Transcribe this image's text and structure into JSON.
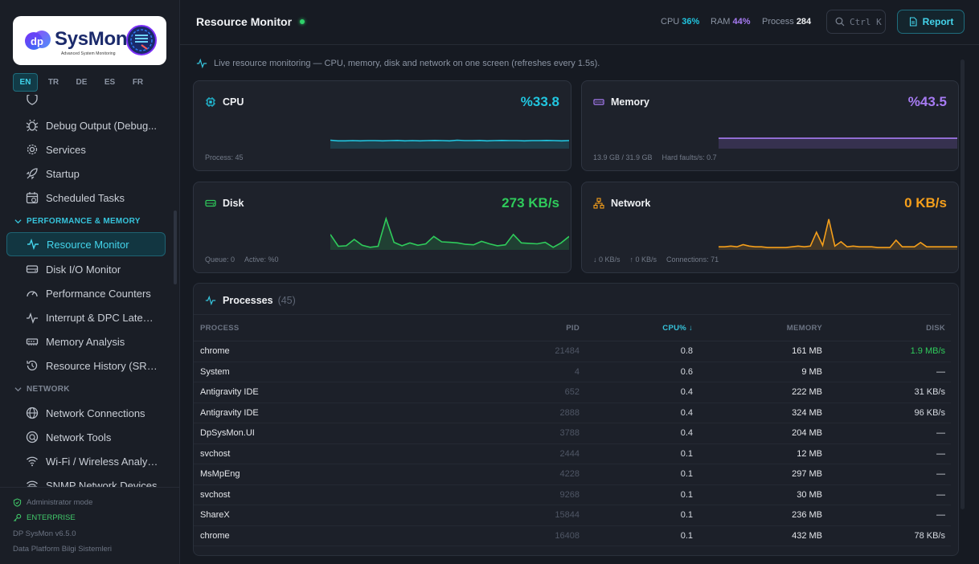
{
  "brand": {
    "title": "SysMon",
    "subtitle": "Advanced System Monitoring"
  },
  "languages": [
    {
      "code": "EN",
      "active": true
    },
    {
      "code": "TR",
      "active": false
    },
    {
      "code": "DE",
      "active": false
    },
    {
      "code": "ES",
      "active": false
    },
    {
      "code": "FR",
      "active": false
    }
  ],
  "sidebar": {
    "items_top": [
      {
        "label": "Debug Output (Debug...",
        "icon": "bug-icon"
      },
      {
        "label": "Services",
        "icon": "gear-icon"
      },
      {
        "label": "Startup",
        "icon": "rocket-icon"
      },
      {
        "label": "Scheduled Tasks",
        "icon": "calendar-clock-icon"
      }
    ],
    "group_perf": "PERFORMANCE & MEMORY",
    "perf_items": [
      {
        "label": "Resource Monitor",
        "icon": "activity-icon",
        "active": true
      },
      {
        "label": "Disk I/O Monitor",
        "icon": "hard-drive-icon"
      },
      {
        "label": "Performance Counters",
        "icon": "gauge-icon"
      },
      {
        "label": "Interrupt & DPC Latency",
        "icon": "pulse-icon"
      },
      {
        "label": "Memory Analysis",
        "icon": "memory-icon"
      },
      {
        "label": "Resource History (SRU...",
        "icon": "history-icon"
      }
    ],
    "group_network": "NETWORK",
    "network_items": [
      {
        "label": "Network Connections",
        "icon": "globe-icon"
      },
      {
        "label": "Network Tools",
        "icon": "network-tools-icon"
      },
      {
        "label": "Wi-Fi / Wireless Analysis",
        "icon": "wifi-icon"
      },
      {
        "label": "SNMP Network Devices",
        "icon": "router-icon"
      }
    ],
    "footer": {
      "admin": "Administrator mode",
      "edition": "ENTERPRISE",
      "version": "DP SysMon v6.5.0",
      "company": "Data Platform Bilgi Sistemleri"
    }
  },
  "header": {
    "title": "Resource Monitor",
    "cpu_label": "CPU",
    "cpu_value": "36%",
    "ram_label": "RAM",
    "ram_value": "44%",
    "process_label": "Process",
    "process_value": "284",
    "search_shortcut": "Ctrl K",
    "report_label": "Report"
  },
  "info_text": "Live resource monitoring — CPU, memory, disk and network on one screen (refreshes every 1.5s).",
  "cards": {
    "cpu": {
      "title": "CPU",
      "value": "%33.8",
      "foot1": "Process: 45",
      "color": "#21c6e0"
    },
    "memory": {
      "title": "Memory",
      "value": "%43.5",
      "foot1": "13.9 GB / 31.9 GB",
      "foot2": "Hard faults/s: 0.7",
      "color": "#a77bf3"
    },
    "disk": {
      "title": "Disk",
      "value": "273 KB/s",
      "foot1": "Queue: 0",
      "foot2": "Active: %0",
      "color": "#2fcb5b"
    },
    "network": {
      "title": "Network",
      "value": "0 KB/s",
      "foot1": "↓ 0 KB/s",
      "foot2": "↑ 0 KB/s",
      "foot3": "Connections: 71",
      "color": "#f59f1b"
    }
  },
  "processes": {
    "title": "Processes",
    "count": "(45)",
    "columns": {
      "process": "PROCESS",
      "pid": "PID",
      "cpu": "CPU% ↓",
      "memory": "MEMORY",
      "disk": "DISK"
    },
    "rows": [
      {
        "name": "chrome",
        "pid": "21484",
        "cpu": "0.8",
        "memory": "161 MB",
        "disk": "1.9 MB/s",
        "disk_highlight": true
      },
      {
        "name": "System",
        "pid": "4",
        "cpu": "0.6",
        "memory": "9 MB",
        "disk": "—"
      },
      {
        "name": "Antigravity IDE",
        "pid": "652",
        "cpu": "0.4",
        "memory": "222 MB",
        "disk": "31 KB/s"
      },
      {
        "name": "Antigravity IDE",
        "pid": "2888",
        "cpu": "0.4",
        "memory": "324 MB",
        "disk": "96 KB/s"
      },
      {
        "name": "DpSysMon.UI",
        "pid": "3788",
        "cpu": "0.4",
        "memory": "204 MB",
        "disk": "—"
      },
      {
        "name": "svchost",
        "pid": "2444",
        "cpu": "0.1",
        "memory": "12 MB",
        "disk": "—"
      },
      {
        "name": "MsMpEng",
        "pid": "4228",
        "cpu": "0.1",
        "memory": "297 MB",
        "disk": "—"
      },
      {
        "name": "svchost",
        "pid": "9268",
        "cpu": "0.1",
        "memory": "30 MB",
        "disk": "—"
      },
      {
        "name": "ShareX",
        "pid": "15844",
        "cpu": "0.1",
        "memory": "236 MB",
        "disk": "—"
      },
      {
        "name": "chrome",
        "pid": "16408",
        "cpu": "0.1",
        "memory": "432 MB",
        "disk": "78 KB/s"
      }
    ]
  },
  "sparklines": {
    "cpu": [
      34,
      31,
      31,
      32,
      31,
      32,
      32,
      31,
      32,
      33,
      31,
      32,
      31,
      32,
      33,
      32,
      31,
      34,
      32,
      32,
      33,
      31,
      32,
      33,
      32,
      32,
      31,
      32,
      32,
      33,
      32,
      31,
      32
    ],
    "memory": [
      43.5,
      43.5,
      43.5,
      43.5,
      43.5,
      43.5,
      43.5,
      43.5,
      43.5,
      43.5,
      43.5,
      43.5,
      43.5,
      43.5,
      43.5,
      43.5,
      43.5,
      43.5,
      43.5,
      43.5,
      43.5,
      43.5,
      43.5,
      43.5,
      43.5,
      43.5,
      43.5,
      43.5,
      43.5,
      43.5,
      43.5,
      43.5,
      43.5
    ],
    "disk": [
      280,
      40,
      50,
      180,
      60,
      20,
      40,
      600,
      120,
      50,
      110,
      60,
      90,
      240,
      130,
      120,
      110,
      80,
      70,
      140,
      90,
      50,
      70,
      280,
      110,
      100,
      90,
      120,
      20,
      110,
      240
    ],
    "network": [
      2,
      2,
      3,
      2,
      5,
      3,
      2,
      2,
      1,
      1,
      1,
      1,
      2,
      3,
      2,
      3,
      22,
      4,
      40,
      3,
      9,
      2,
      3,
      2,
      2,
      2,
      1,
      1,
      1,
      11,
      2,
      2,
      2,
      8,
      2,
      2,
      2,
      2,
      2,
      2
    ]
  }
}
